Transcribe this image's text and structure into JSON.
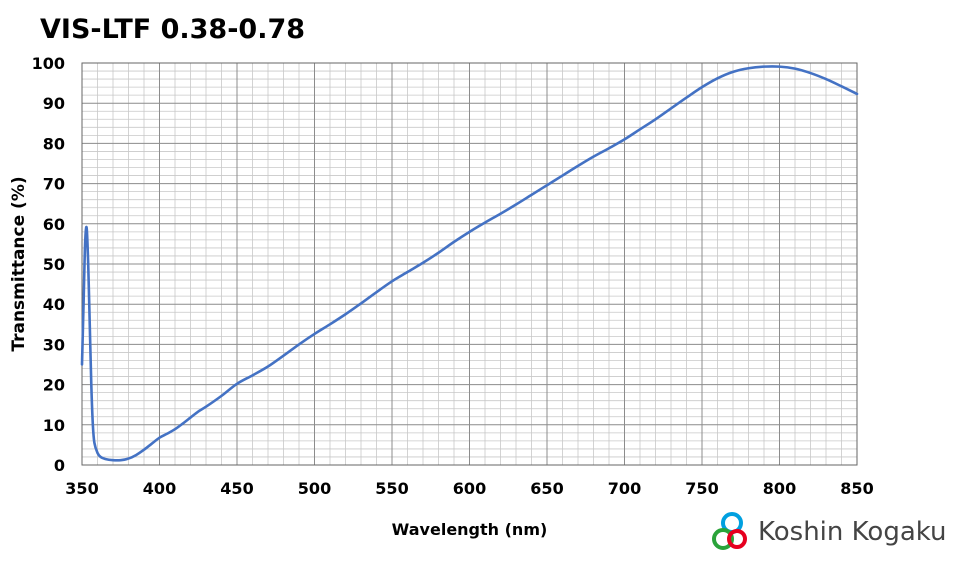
{
  "chart_data": {
    "type": "line",
    "title": "VIS-LTF 0.38-0.78",
    "xlabel": "Wavelength (nm)",
    "ylabel": "Transmittance (%)",
    "xlim": [
      350,
      850
    ],
    "ylim": [
      0,
      100
    ],
    "x_ticks": [
      "350",
      "400",
      "450",
      "500",
      "550",
      "600",
      "650",
      "700",
      "750",
      "800",
      "850"
    ],
    "y_ticks": [
      "0",
      "10",
      "20",
      "30",
      "40",
      "50",
      "60",
      "70",
      "80",
      "90",
      "100"
    ],
    "grid": true,
    "legend": "none",
    "series": [
      {
        "color": "#4472c4",
        "x": [
          350,
          351,
          352,
          353,
          354,
          355,
          356,
          357,
          358,
          360,
          362,
          365,
          370,
          375,
          380,
          385,
          390,
          395,
          400,
          405,
          410,
          415,
          420,
          425,
          430,
          440,
          450,
          460,
          470,
          480,
          490,
          500,
          510,
          520,
          530,
          540,
          550,
          560,
          570,
          580,
          590,
          600,
          610,
          620,
          630,
          640,
          650,
          660,
          670,
          680,
          690,
          700,
          710,
          720,
          730,
          740,
          750,
          760,
          770,
          780,
          790,
          800,
          810,
          820,
          830,
          840,
          850
        ],
        "y": [
          25,
          40,
          55,
          59,
          50,
          35,
          20,
          10,
          5.5,
          3.0,
          2.0,
          1.5,
          1.2,
          1.2,
          1.6,
          2.5,
          3.8,
          5.3,
          6.8,
          7.8,
          8.9,
          10.3,
          11.8,
          13.3,
          14.5,
          17.2,
          20.2,
          22.3,
          24.5,
          27.2,
          30.0,
          32.6,
          35.0,
          37.5,
          40.2,
          43.0,
          45.7,
          48.0,
          50.3,
          52.8,
          55.5,
          58.0,
          60.3,
          62.5,
          64.8,
          67.2,
          69.6,
          72.0,
          74.4,
          76.7,
          78.8,
          81.0,
          83.5,
          86.0,
          88.7,
          91.4,
          94.0,
          96.2,
          97.8,
          98.7,
          99.1,
          99.1,
          98.6,
          97.5,
          96.0,
          94.2,
          92.3
        ]
      }
    ]
  },
  "brand": {
    "name": "Koshin Kogaku",
    "logo_icon": "koshin-kogaku-logo-icon",
    "colors": [
      "#00a0e0",
      "#e6001f",
      "#2aa33a"
    ]
  }
}
